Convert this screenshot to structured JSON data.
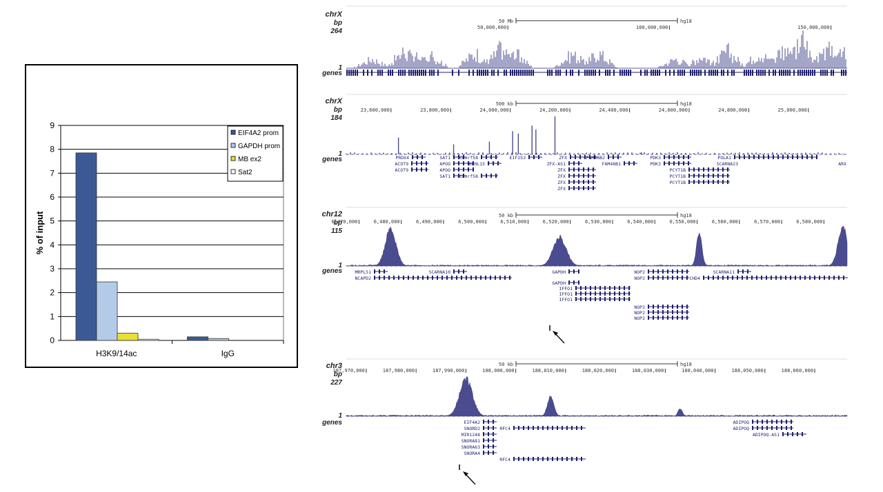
{
  "chart_data": [
    {
      "type": "bar",
      "categories": [
        "H3K9/14ac",
        "IgG"
      ],
      "series": [
        {
          "name": "EIF4A2 prom",
          "color": "#3b5a95",
          "values": [
            7.85,
            0.15
          ]
        },
        {
          "name": "GAPDH prom",
          "color": "#b4cbe8",
          "values": [
            2.45,
            0.08
          ]
        },
        {
          "name": "MB ex2",
          "color": "#e8e033",
          "values": [
            0.3,
            0.0
          ]
        },
        {
          "name": "Sat2",
          "color": "#fdfdf2",
          "values": [
            0.05,
            0.0
          ]
        }
      ],
      "ylabel": "% of input",
      "ylim": [
        0,
        9
      ],
      "yticks": [
        "0",
        "1",
        "2",
        "3",
        "4",
        "5",
        "6",
        "7",
        "8",
        "9"
      ],
      "grid": true,
      "legend": "top-right"
    },
    {
      "type": "area",
      "chrom": "chrX",
      "bp": "bp",
      "ymax": "264",
      "ymin": "1",
      "genes_label": "genes",
      "scalebar": "50 Mb",
      "assembly": "hg18",
      "ticks": [
        {
          "label": "50,000,000",
          "x": 50000000
        },
        {
          "label": "100,000,000",
          "x": 100000000
        },
        {
          "label": "150,000,000",
          "x": 150000000
        }
      ],
      "xrange": [
        1,
        155000000
      ],
      "peaks": [
        {
          "x": 8000000,
          "h": 0.3
        },
        {
          "x": 18000000,
          "h": 0.55
        },
        {
          "x": 22000000,
          "h": 0.35
        },
        {
          "x": 26000000,
          "h": 0.45
        },
        {
          "x": 40000000,
          "h": 0.5
        },
        {
          "x": 48000000,
          "h": 0.65
        },
        {
          "x": 52000000,
          "h": 0.5
        },
        {
          "x": 70000000,
          "h": 0.45
        },
        {
          "x": 78000000,
          "h": 0.5
        },
        {
          "x": 102000000,
          "h": 0.3
        },
        {
          "x": 110000000,
          "h": 0.4
        },
        {
          "x": 118000000,
          "h": 0.55
        },
        {
          "x": 128000000,
          "h": 0.5
        },
        {
          "x": 135000000,
          "h": 0.6
        },
        {
          "x": 141000000,
          "h": 0.95
        },
        {
          "x": 149000000,
          "h": 0.6
        },
        {
          "x": 153000000,
          "h": 0.55
        }
      ]
    },
    {
      "type": "area",
      "chrom": "chrX",
      "bp": "bp",
      "ymax": "184",
      "ymin": "1",
      "genes_label": "genes",
      "scalebar": "500 kb",
      "assembly": "hg18",
      "ticks": [
        {
          "label": "23,600,000",
          "x": 23600000
        },
        {
          "label": "23,800,000",
          "x": 23800000
        },
        {
          "label": "24,000,000",
          "x": 24000000
        },
        {
          "label": "24,200,000",
          "x": 24200000
        },
        {
          "label": "24,400,000",
          "x": 24400000
        },
        {
          "label": "24,600,000",
          "x": 24600000
        },
        {
          "label": "24,800,000",
          "x": 24800000
        },
        {
          "label": "25,000,000",
          "x": 25000000
        }
      ],
      "xrange": [
        23450000,
        25130000
      ],
      "peaks": [
        {
          "x": 23625000,
          "h": 0.42
        },
        {
          "x": 23810000,
          "h": 0.25
        },
        {
          "x": 23930000,
          "h": 0.32
        },
        {
          "x": 24008000,
          "h": 0.58
        },
        {
          "x": 24027000,
          "h": 0.52
        },
        {
          "x": 24073000,
          "h": 0.72
        },
        {
          "x": 24086000,
          "h": 0.62
        },
        {
          "x": 24150000,
          "h": 0.95
        },
        {
          "x": 24440000,
          "h": 0.05
        }
      ],
      "genes": [
        "PRDX4",
        "ACOT9",
        "ACOT9",
        "SAT1",
        "APOO",
        "APOO",
        "SAT1",
        "CXorf58",
        "CXorf58",
        "KLHL15",
        "EIF2S3",
        "ZFX",
        "ZFX-AS1",
        "ZFX",
        "ZFX",
        "ZFX",
        "ZFX",
        "FAM48B2",
        "FAM48B1",
        "PDK3",
        "PDK3",
        "PCYT1B",
        "PCYT1B",
        "PCYT1B",
        "POLA1",
        "SCARNA23",
        "ARX"
      ]
    },
    {
      "type": "area",
      "chrom": "chr12",
      "bp": "bp",
      "ymax": "115",
      "ymin": "1",
      "genes_label": "genes",
      "scalebar": "50 kb",
      "assembly": "hg18",
      "ticks": [
        {
          "label": "6,470,000",
          "x": 6470000
        },
        {
          "label": "6,480,000",
          "x": 6480000
        },
        {
          "label": "6,490,000",
          "x": 6490000
        },
        {
          "label": "6,500,000",
          "x": 6500000
        },
        {
          "label": "6,510,000",
          "x": 6510000
        },
        {
          "label": "6,520,000",
          "x": 6520000
        },
        {
          "label": "6,530,000",
          "x": 6530000
        },
        {
          "label": "6,540,000",
          "x": 6540000
        },
        {
          "label": "6,550,000",
          "x": 6550000
        },
        {
          "label": "6,560,000",
          "x": 6560000
        },
        {
          "label": "6,570,000",
          "x": 6570000
        },
        {
          "label": "6,580,000",
          "x": 6580000
        }
      ],
      "xrange": [
        6467000,
        6585500
      ],
      "peaks": [
        {
          "x": 6477500,
          "h": 0.95,
          "w": 1800
        },
        {
          "x": 6517500,
          "h": 0.75,
          "w": 2200
        },
        {
          "x": 6550500,
          "h": 0.85,
          "w": 900
        },
        {
          "x": 6584500,
          "h": 1.0,
          "w": 1600
        }
      ],
      "genes": [
        "MRPL51",
        "NCAPD2",
        "SCARNA10",
        "GAPDH",
        "GAPDH",
        "IFFO1",
        "IFFO1",
        "IFFO1",
        "NOP2",
        "NOP2",
        "NOP2",
        "NOP2",
        "NOP2",
        "CHD4",
        "SCARNA11"
      ]
    },
    {
      "type": "area",
      "chrom": "chr3",
      "bp": "bp",
      "ymax": "227",
      "ymin": "1",
      "genes_label": "genes",
      "scalebar": "50 kb",
      "assembly": "hg18",
      "ticks": [
        {
          "label": "187,970,000",
          "x": 187970000
        },
        {
          "label": "187,980,000",
          "x": 187980000
        },
        {
          "label": "187,990,000",
          "x": 187990000
        },
        {
          "label": "188,000,000",
          "x": 188000000
        },
        {
          "label": "188,010,000",
          "x": 188010000
        },
        {
          "label": "188,020,000",
          "x": 188020000
        },
        {
          "label": "188,030,000",
          "x": 188030000
        },
        {
          "label": "188,040,000",
          "x": 188040000
        },
        {
          "label": "188,050,000",
          "x": 188050000
        },
        {
          "label": "188,060,000",
          "x": 188060000
        }
      ],
      "xrange": [
        187966000,
        188066500
      ],
      "peaks": [
        {
          "x": 187990000,
          "h": 0.95,
          "w": 1800
        },
        {
          "x": 188007000,
          "h": 0.5,
          "w": 900
        },
        {
          "x": 188033000,
          "h": 0.2,
          "w": 600
        }
      ],
      "genes": [
        "EIF4A2",
        "SNORD2",
        "MIR1248",
        "SNORA81",
        "SNORA63",
        "SNORA4",
        "RFC4",
        "RFC4",
        "ADIPOQ",
        "ADIPOQ",
        "ADIPOQ-AS1"
      ]
    }
  ]
}
